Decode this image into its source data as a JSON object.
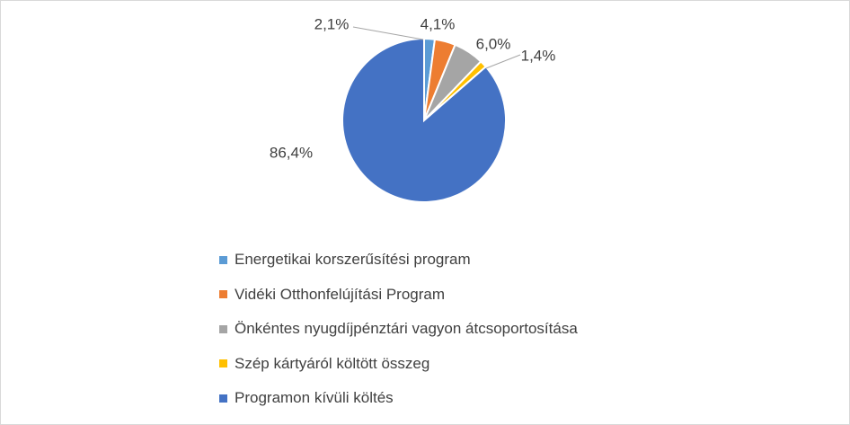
{
  "chart_data": {
    "type": "pie",
    "title": "",
    "legend_position": "bottom",
    "start_angle_deg": 0,
    "direction": "clockwise",
    "slices": [
      {
        "label": "Energetikai korszerűsítési program",
        "value": 2.1,
        "value_label": "2,1%",
        "color": "#5b9bd5"
      },
      {
        "label": "Vidéki Otthonfelújítási Program",
        "value": 4.1,
        "value_label": "4,1%",
        "color": "#ed7d31"
      },
      {
        "label": "Önkéntes nyugdíjpénztári vagyon átcsoportosítása",
        "value": 6.0,
        "value_label": "6,0%",
        "color": "#a5a5a5"
      },
      {
        "label": "Szép kártyáról költött összeg",
        "value": 1.4,
        "value_label": "1,4%",
        "color": "#ffc000"
      },
      {
        "label": "Programon kívüli költés",
        "value": 86.4,
        "value_label": "86,4%",
        "color": "#4472c4"
      }
    ]
  }
}
